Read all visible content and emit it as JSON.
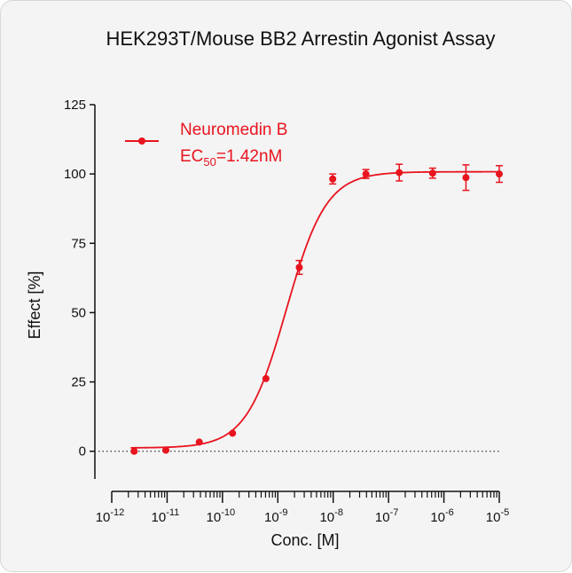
{
  "chart_data": {
    "type": "scatter",
    "title": "HEK293T/Mouse BB2 Arrestin Agonist Assay",
    "xlabel": "Conc. [M]",
    "ylabel": "Effect  [%]",
    "x_scale": "log",
    "xlim": [
      1e-12,
      1e-05
    ],
    "ylim": [
      -10,
      125
    ],
    "y_ticks": [
      0,
      25,
      50,
      75,
      100,
      125
    ],
    "x_ticks": [
      {
        "base": "10",
        "exp": "-12",
        "value": 1e-12
      },
      {
        "base": "10",
        "exp": "-11",
        "value": 1e-11
      },
      {
        "base": "10",
        "exp": "-10",
        "value": 1e-10
      },
      {
        "base": "10",
        "exp": "-9",
        "value": 1e-09
      },
      {
        "base": "10",
        "exp": "-8",
        "value": 1e-08
      },
      {
        "base": "10",
        "exp": "-7",
        "value": 1e-07
      },
      {
        "base": "10",
        "exp": "-6",
        "value": 1e-06
      },
      {
        "base": "10",
        "exp": "-5",
        "value": 1e-05
      }
    ],
    "grid": false,
    "baseline_zero": "dotted",
    "legend_position": "top-left",
    "color": "#e8141e",
    "series": [
      {
        "name": "Neuromedin B",
        "legend_line2": {
          "prefix": "EC",
          "sub": "50",
          "suffix": "=1.42nM"
        },
        "points": [
          {
            "x": 2.54e-12,
            "y": 0.0,
            "err": 0
          },
          {
            "x": 9.5e-12,
            "y": 0.4,
            "err": 0
          },
          {
            "x": 3.81e-11,
            "y": 3.3,
            "err": 0
          },
          {
            "x": 1.52e-10,
            "y": 6.5,
            "err": 0
          },
          {
            "x": 6.1e-10,
            "y": 26.2,
            "err": 0
          },
          {
            "x": 2.44e-09,
            "y": 66.3,
            "err": 2.5
          },
          {
            "x": 9.8e-09,
            "y": 98.2,
            "err": 1.8
          },
          {
            "x": 3.9e-08,
            "y": 100.0,
            "err": 1.6
          },
          {
            "x": 1.56e-07,
            "y": 100.5,
            "err": 3.0
          },
          {
            "x": 6.25e-07,
            "y": 100.3,
            "err": 1.8
          },
          {
            "x": 2.5e-06,
            "y": 98.7,
            "err": 4.6
          },
          {
            "x": 1e-05,
            "y": 100.0,
            "err": 3.0
          }
        ],
        "fit": {
          "bottom": 1.2,
          "top": 100.8,
          "ec50": 1.42e-09,
          "hill": 1.2
        }
      }
    ]
  }
}
